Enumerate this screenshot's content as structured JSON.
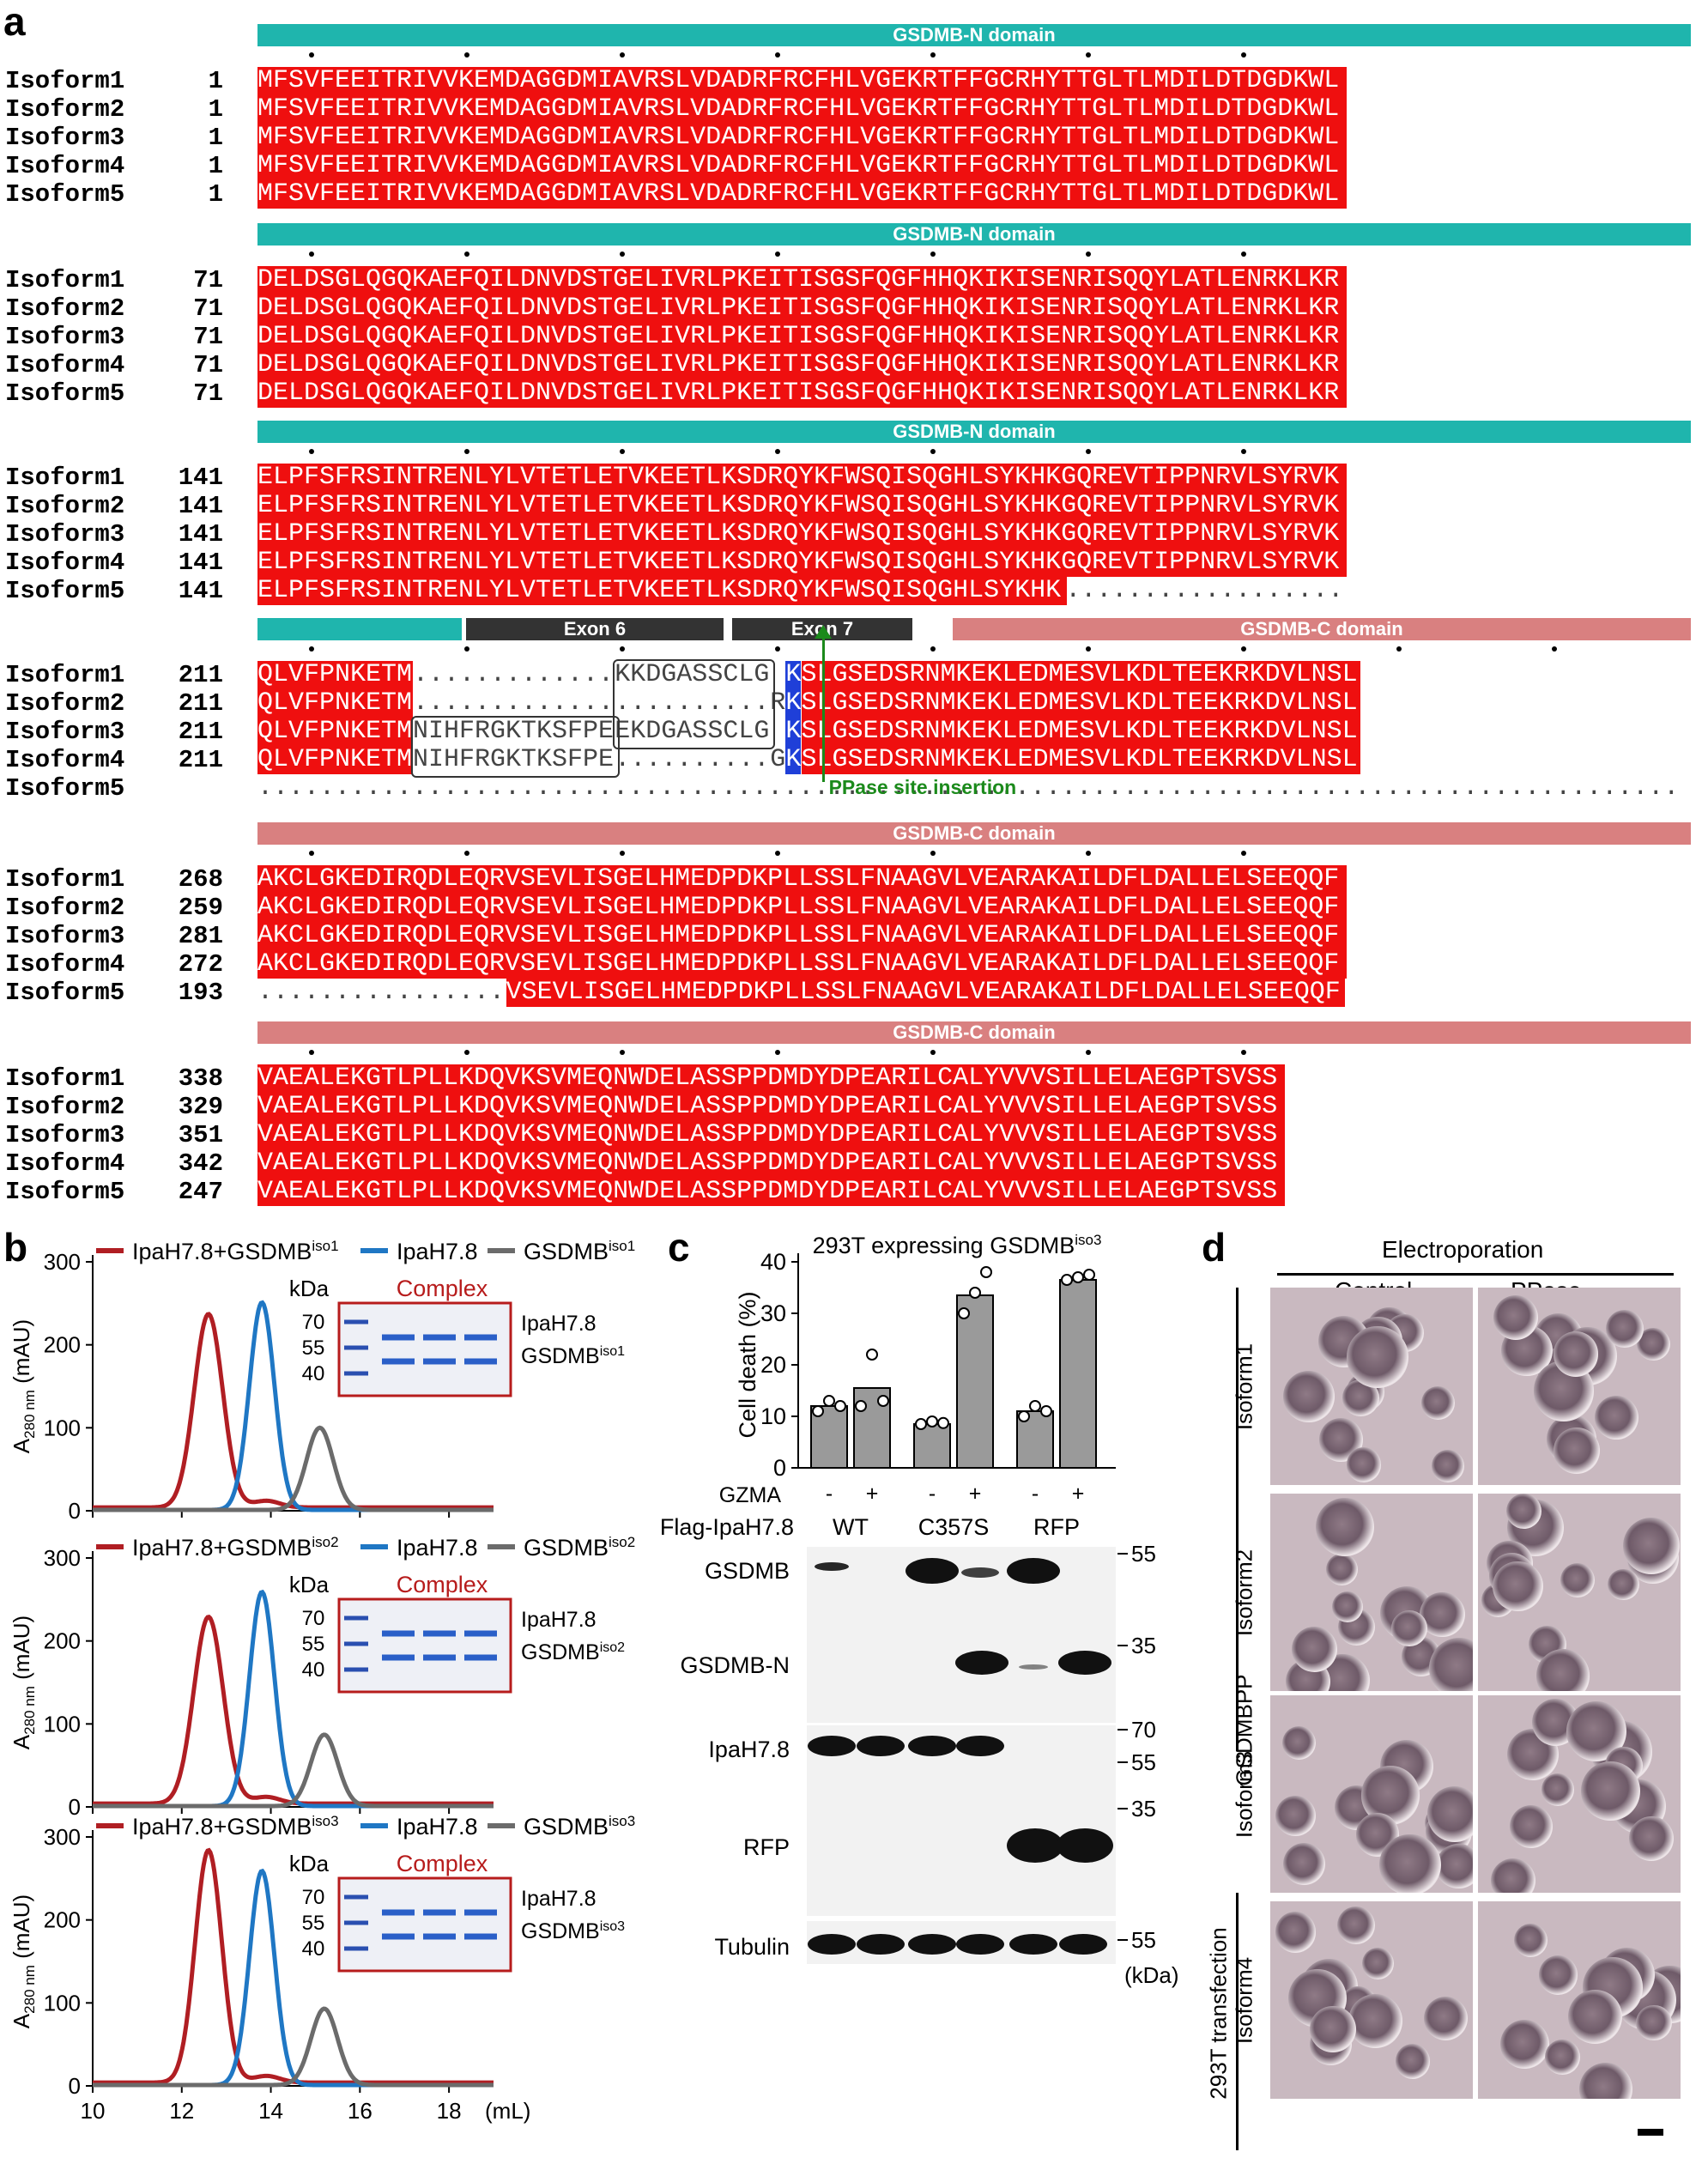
{
  "panel_labels": {
    "a": "a",
    "b": "b",
    "c": "c",
    "d": "d"
  },
  "alignment": {
    "blocks": [
      {
        "domain": "GSDMB-N domain",
        "rows": [
          {
            "name": "Isoform1",
            "start": "1",
            "seq": "MFSVFEEITRIVVKEMDAGGDMIAVRSLVDADRFRCFHLVGEKRTFFGCRHYTTGLTLMDILDTDGDKWL"
          },
          {
            "name": "Isoform2",
            "start": "1",
            "seq": "MFSVFEEITRIVVKEMDAGGDMIAVRSLVDADRFRCFHLVGEKRTFFGCRHYTTGLTLMDILDTDGDKWL"
          },
          {
            "name": "Isoform3",
            "start": "1",
            "seq": "MFSVFEEITRIVVKEMDAGGDMIAVRSLVDADRFRCFHLVGEKRTFFGCRHYTTGLTLMDILDTDGDKWL"
          },
          {
            "name": "Isoform4",
            "start": "1",
            "seq": "MFSVFEEITRIVVKEMDAGGDMIAVRSLVDADRFRCFHLVGEKRTFFGCRHYTTGLTLMDILDTDGDKWL"
          },
          {
            "name": "Isoform5",
            "start": "1",
            "seq": "MFSVFEEITRIVVKEMDAGGDMIAVRSLVDADRFRCFHLVGEKRTFFGCRHYTTGLTLMDILDTDGDKWL"
          }
        ]
      },
      {
        "domain": "GSDMB-N domain",
        "rows": [
          {
            "name": "Isoform1",
            "start": "71",
            "seq": "DELDSGLQGQKAEFQILDNVDSTGELIVRLPKEITISGSFQGFHHQKIKISENRISQQYLATLENRKLKR"
          },
          {
            "name": "Isoform2",
            "start": "71",
            "seq": "DELDSGLQGQKAEFQILDNVDSTGELIVRLPKEITISGSFQGFHHQKIKISENRISQQYLATLENRKLKR"
          },
          {
            "name": "Isoform3",
            "start": "71",
            "seq": "DELDSGLQGQKAEFQILDNVDSTGELIVRLPKEITISGSFQGFHHQKIKISENRISQQYLATLENRKLKR"
          },
          {
            "name": "Isoform4",
            "start": "71",
            "seq": "DELDSGLQGQKAEFQILDNVDSTGELIVRLPKEITISGSFQGFHHQKIKISENRISQQYLATLENRKLKR"
          },
          {
            "name": "Isoform5",
            "start": "71",
            "seq": "DELDSGLQGQKAEFQILDNVDSTGELIVRLPKEITISGSFQGFHHQKIKISENRISQQYLATLENRKLKR"
          }
        ]
      },
      {
        "domain": "GSDMB-N domain",
        "rows": [
          {
            "name": "Isoform1",
            "start": "141",
            "seq": "ELPFSFRSINTRENLYLVTETLETVKEETLKSDRQYKFWSQISQGHLSYKHKGQREVTIPPNRVLSYRVK"
          },
          {
            "name": "Isoform2",
            "start": "141",
            "seq": "ELPFSFRSINTRENLYLVTETLETVKEETLKSDRQYKFWSQISQGHLSYKHKGQREVTIPPNRVLSYRVK"
          },
          {
            "name": "Isoform3",
            "start": "141",
            "seq": "ELPFSFRSINTRENLYLVTETLETVKEETLKSDRQYKFWSQISQGHLSYKHKGQREVTIPPNRVLSYRVK"
          },
          {
            "name": "Isoform4",
            "start": "141",
            "seq": "ELPFSFRSINTRENLYLVTETLETVKEETLKSDRQYKFWSQISQGHLSYKHKGQREVTIPPNRVLSYRVK"
          },
          {
            "name": "Isoform5",
            "start": "141",
            "seq": "ELPFSFRSINTRENLYLVTETLETVKEETLKSDRQYKFWSQISQGHLSYKHK"
          }
        ]
      },
      {
        "exon6": "Exon 6",
        "exon7": "Exon 7",
        "domain": "GSDMB-C domain",
        "pp_label": "PPase site insertion",
        "rows": [
          {
            "name": "Isoform1",
            "start": "211",
            "a": "QLVFPNKETM",
            "b": "KKDGASSCLG",
            "c": "K",
            "d": "SLGSEDSRNMKEKLEDMESVLKDLTEEKRKDVLNSL"
          },
          {
            "name": "Isoform2",
            "start": "211",
            "a": "QLVFPNKETM",
            "b": "",
            "c": "RK",
            "d": "SLGSEDSRNMKEKLEDMESVLKDLTEEKRKDVLNSL"
          },
          {
            "name": "Isoform3",
            "start": "211",
            "a": "QLVFPNKETM",
            "e": "NIHFRGKTKSFPE",
            "b": "EKDGASSCLG",
            "c": "K",
            "d": "SLGSEDSRNMKEKLEDMESVLKDLTEEKRKDVLNSL"
          },
          {
            "name": "Isoform4",
            "start": "211",
            "a": "QLVFPNKETM",
            "e": "NIHFRGKTKSFPE",
            "b": "",
            "c": "GK",
            "d": "SLGSEDSRNMKEKLEDMESVLKDLTEEKRKDVLNSL"
          },
          {
            "name": "Isoform5",
            "start": "",
            "a": "",
            "b": "",
            "c": "",
            "d": ""
          }
        ]
      },
      {
        "domain": "GSDMB-C domain",
        "rows": [
          {
            "name": "Isoform1",
            "start": "268",
            "seq": "AKCLGKEDIRQDLEQRVSEVLISGELHMEDPDKPLLSSLFNAAGVLVEARAKAILDFLDALLELSEEQQF"
          },
          {
            "name": "Isoform2",
            "start": "259",
            "seq": "AKCLGKEDIRQDLEQRVSEVLISGELHMEDPDKPLLSSLFNAAGVLVEARAKAILDFLDALLELSEEQQF"
          },
          {
            "name": "Isoform3",
            "start": "281",
            "seq": "AKCLGKEDIRQDLEQRVSEVLISGELHMEDPDKPLLSSLFNAAGVLVEARAKAILDFLDALLELSEEQQF"
          },
          {
            "name": "Isoform4",
            "start": "272",
            "seq": "AKCLGKEDIRQDLEQRVSEVLISGELHMEDPDKPLLSSLFNAAGVLVEARAKAILDFLDALLELSEEQQF"
          },
          {
            "name": "Isoform5",
            "start": "193",
            "seq": "VSEVLISGELHMEDPDKPLLSSLFNAAGVLVEARAKAILDFLDALLELSEEQQF"
          }
        ]
      },
      {
        "domain": "GSDMB-C domain",
        "rows": [
          {
            "name": "Isoform1",
            "start": "338",
            "seq": "VAEALEKGTLPLLKDQVKSVMEQNWDELASSPPDMDYDPEARILCALYVVVSILLELAEGPTSVSS"
          },
          {
            "name": "Isoform2",
            "start": "329",
            "seq": "VAEALEKGTLPLLKDQVKSVMEQNWDELASSPPDMDYDPEARILCALYVVVSILLELAEGPTSVSS"
          },
          {
            "name": "Isoform3",
            "start": "351",
            "seq": "VAEALEKGTLPLLKDQVKSVMEQNWDELASSPPDMDYDPEARILCALYVVVSILLELAEGPTSVSS"
          },
          {
            "name": "Isoform4",
            "start": "342",
            "seq": "VAEALEKGTLPLLKDQVKSVMEQNWDELASSPPDMDYDPEARILCALYVVVSILLELAEGPTSVSS"
          },
          {
            "name": "Isoform5",
            "start": "247",
            "seq": "VAEALEKGTLPLLKDQVKSVMEQNWDELASSPPDMDYDPEARILCALYVVVSILLELAEGPTSVSS"
          }
        ]
      }
    ],
    "colors": {
      "n_domain": "#1fb5ad",
      "c_domain": "#d98080",
      "identical": "#ef0f0f",
      "highlight_k": "#1f3fd8",
      "exon": "#333333",
      "pp_arrow": "#1b8a1b"
    }
  },
  "chart_data": [
    {
      "type": "line",
      "ylabel": "A280 nm (mAU)",
      "ylim": [
        0,
        300
      ],
      "yticks": [
        "0",
        "100",
        "200",
        "300"
      ],
      "xlim": [
        10,
        19
      ],
      "legend": [
        "IpaH7.8+GSDMBiso1",
        "IpaH7.8",
        "GSDMBiso1"
      ],
      "series": [
        {
          "name": "IpaH7.8+GSDMBiso1",
          "color": "#b01e23",
          "peak_x": 12.6,
          "peak_y": 233,
          "width": 0.32
        },
        {
          "name": "IpaH7.8",
          "color": "#1f77c4",
          "peak_x": 13.8,
          "peak_y": 250,
          "width": 0.28
        },
        {
          "name": "GSDMBiso1",
          "color": "#6b6b6b",
          "peak_x": 15.1,
          "peak_y": 99,
          "width": 0.3
        }
      ],
      "gel": {
        "kda": "kDa",
        "title": "Complex",
        "markers": [
          "70",
          "55",
          "40"
        ],
        "labels": [
          "IpaH7.8",
          "GSDMBiso1"
        ]
      }
    },
    {
      "type": "line",
      "ylabel": "A280 nm (mAU)",
      "ylim": [
        0,
        300
      ],
      "yticks": [
        "0",
        "100",
        "200",
        "300"
      ],
      "xlim": [
        10,
        19
      ],
      "legend": [
        "IpaH7.8+GSDMBiso2",
        "IpaH7.8",
        "GSDMBiso2"
      ],
      "series": [
        {
          "name": "IpaH7.8+GSDMBiso2",
          "color": "#b01e23",
          "peak_x": 12.6,
          "peak_y": 225,
          "width": 0.33
        },
        {
          "name": "IpaH7.8",
          "color": "#1f77c4",
          "peak_x": 13.8,
          "peak_y": 258,
          "width": 0.28
        },
        {
          "name": "GSDMBiso2",
          "color": "#6b6b6b",
          "peak_x": 15.2,
          "peak_y": 86,
          "width": 0.3
        }
      ],
      "gel": {
        "kda": "kDa",
        "title": "Complex",
        "markers": [
          "70",
          "55",
          "40"
        ],
        "labels": [
          "IpaH7.8",
          "GSDMBiso2"
        ]
      }
    },
    {
      "type": "line",
      "ylabel": "A280 nm (mAU)",
      "ylim": [
        0,
        300
      ],
      "yticks": [
        "0",
        "100",
        "200",
        "300"
      ],
      "xlim": [
        10,
        19
      ],
      "xticks": [
        "10",
        "12",
        "14",
        "16",
        "18"
      ],
      "xunit": "(mL)",
      "legend": [
        "IpaH7.8+GSDMBiso3",
        "IpaH7.8",
        "GSDMBiso3"
      ],
      "series": [
        {
          "name": "IpaH7.8+GSDMBiso3",
          "color": "#b01e23",
          "peak_x": 12.6,
          "peak_y": 280,
          "width": 0.3
        },
        {
          "name": "IpaH7.8",
          "color": "#1f77c4",
          "peak_x": 13.8,
          "peak_y": 258,
          "width": 0.28
        },
        {
          "name": "GSDMBiso3",
          "color": "#6b6b6b",
          "peak_x": 15.2,
          "peak_y": 92,
          "width": 0.3
        }
      ],
      "gel": {
        "kda": "kDa",
        "title": "Complex",
        "markers": [
          "70",
          "55",
          "40"
        ],
        "labels": [
          "IpaH7.8",
          "GSDMBiso3"
        ]
      }
    },
    {
      "type": "bar",
      "title": "293T expressing GSDMBiso3",
      "ylabel": "Cell death (%)",
      "ylim": [
        0,
        40
      ],
      "yticks": [
        "0",
        "10",
        "20",
        "30",
        "40"
      ],
      "categories": [
        "WT -",
        "WT +",
        "C357S -",
        "C357S +",
        "RFP -",
        "RFP +"
      ],
      "values": [
        12,
        15.5,
        8.5,
        33.5,
        11,
        36.5
      ],
      "points": [
        [
          11,
          13,
          12
        ],
        [
          12,
          22,
          13
        ],
        [
          8.5,
          9,
          8.7
        ],
        [
          30,
          34,
          38
        ],
        [
          10,
          12,
          11
        ],
        [
          36.5,
          37,
          37.5
        ]
      ]
    }
  ],
  "panel_c": {
    "gzma_label": "GZMA",
    "gzma_signs": [
      "-",
      "+",
      "-",
      "+",
      "-",
      "+"
    ],
    "flag_label": "Flag-IpaH7.8",
    "groups": [
      "WT",
      "C357S",
      "RFP"
    ],
    "blot_labels": [
      "GSDMB",
      "GSDMB-N",
      "IpaH7.8",
      "RFP",
      "Tubulin"
    ],
    "markers_top": [
      "55",
      "35"
    ],
    "markers_mid": [
      "70",
      "55",
      "35"
    ],
    "marker_bottom": "55",
    "kda": "(kDa)"
  },
  "panel_d": {
    "header": "Electroporation",
    "columns": [
      "Control",
      "PPase"
    ],
    "rows": [
      "Isoform1",
      "Isoform2",
      "Isoform3",
      "Isoform4"
    ],
    "side1": "GSDMBPP",
    "side2": "293T transfection"
  }
}
